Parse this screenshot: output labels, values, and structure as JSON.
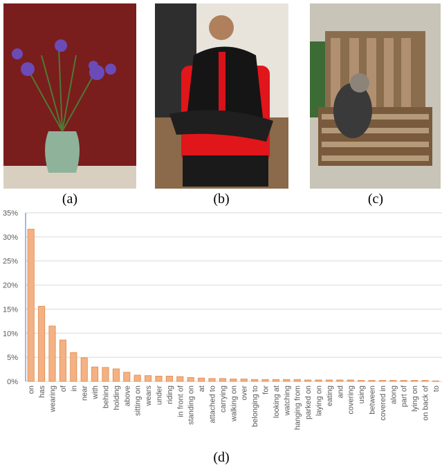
{
  "captions": [
    "(a)",
    "(b)",
    "(c)",
    "(d)"
  ],
  "chart_data": {
    "type": "bar",
    "categories": [
      "on",
      "has",
      "wearing",
      "of",
      "in",
      "near",
      "with",
      "behind",
      "holding",
      "above",
      "sitting on",
      "wears",
      "under",
      "riding",
      "in front of",
      "standing on",
      "at",
      "attached to",
      "carrying",
      "walking on",
      "over",
      "belonging to",
      "for",
      "looking at",
      "watching",
      "hanging from",
      "parked on",
      "laying on",
      "eating",
      "and",
      "covering",
      "using",
      "between",
      "covered in",
      "along",
      "part of",
      "lying on",
      "on back of",
      "to"
    ],
    "values": [
      31.6,
      15.6,
      11.5,
      8.6,
      6.0,
      4.9,
      3.0,
      2.9,
      2.6,
      1.9,
      1.3,
      1.2,
      1.1,
      1.1,
      1.0,
      0.8,
      0.7,
      0.6,
      0.6,
      0.5,
      0.5,
      0.4,
      0.4,
      0.4,
      0.4,
      0.4,
      0.3,
      0.3,
      0.3,
      0.3,
      0.3,
      0.2,
      0.2,
      0.2,
      0.2,
      0.2,
      0.2,
      0.2,
      0.1
    ],
    "color": "#f4b183",
    "ylim": [
      0,
      35
    ],
    "yticks": [
      {
        "value": 0,
        "label": "0%"
      },
      {
        "value": 5,
        "label": "5%"
      },
      {
        "value": 10,
        "label": "10%"
      },
      {
        "value": 15,
        "label": "15%"
      },
      {
        "value": 20,
        "label": "20%"
      },
      {
        "value": 25,
        "label": "25%"
      },
      {
        "value": 30,
        "label": "30%"
      },
      {
        "value": 35,
        "label": "35%"
      }
    ],
    "grid": true
  }
}
